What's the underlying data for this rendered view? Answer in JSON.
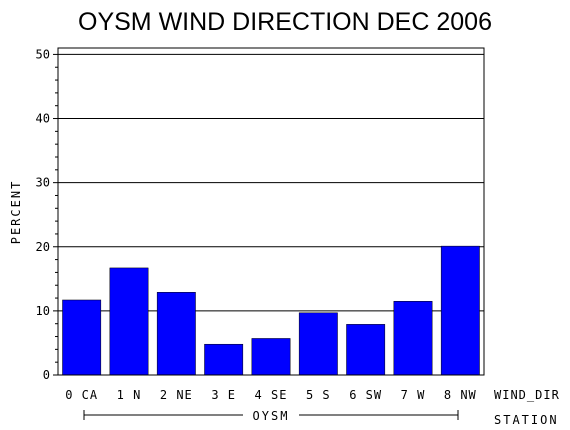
{
  "chart_data": {
    "type": "bar",
    "title": "OYSM WIND DIRECTION DEC 2006",
    "ylabel": "PERCENT",
    "xlabel": "WIND_DIR",
    "group_axis_label": "STATION",
    "group_label": "OYSM",
    "categories": [
      "0 CA",
      "1 N",
      "2 NE",
      "3 E",
      "4 SE",
      "5 S",
      "6 SW",
      "7 W",
      "8 NW"
    ],
    "values": [
      11.7,
      16.7,
      12.9,
      4.8,
      5.7,
      9.7,
      7.9,
      11.5,
      20.1
    ],
    "ylim": [
      0,
      51
    ],
    "yticks": [
      "0",
      "10",
      "20",
      "30",
      "40",
      "50"
    ],
    "grid": true,
    "bar_color": "#0000ff"
  }
}
